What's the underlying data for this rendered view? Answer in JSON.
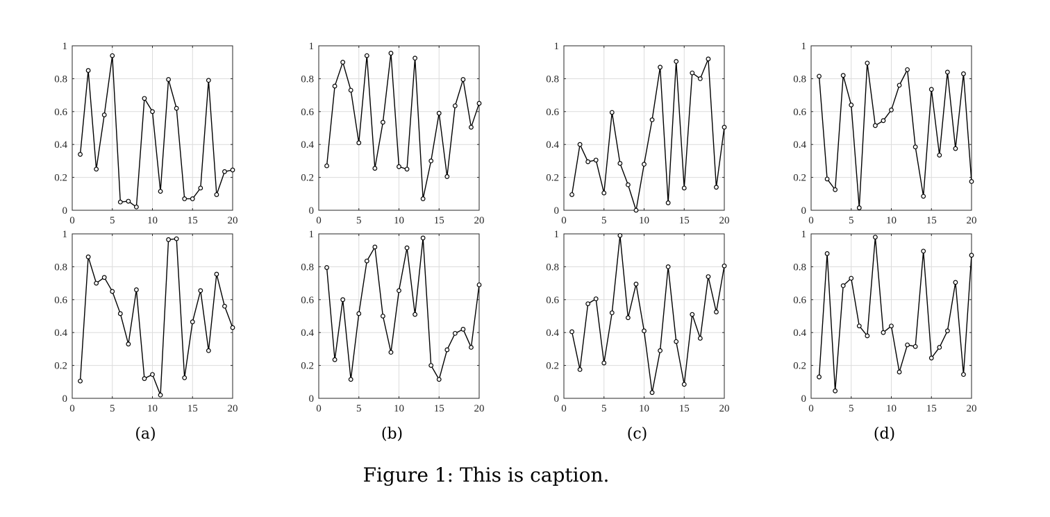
{
  "figure": {
    "caption": "Figure 1: This is caption.",
    "colors": {
      "line": "#000000",
      "grid": "#dcdcdc",
      "axes": "#262626"
    }
  },
  "chart_data": [
    {
      "type": "line",
      "label": "(a)",
      "row": 1,
      "xlim": [
        0,
        20
      ],
      "ylim": [
        0,
        1
      ],
      "xticks": [
        0,
        5,
        10,
        15,
        20
      ],
      "yticks": [
        0,
        0.2,
        0.4,
        0.6,
        0.8,
        1
      ],
      "grid": true,
      "marker": "circle",
      "x": [
        1,
        2,
        3,
        4,
        5,
        6,
        7,
        8,
        9,
        10,
        11,
        12,
        13,
        14,
        15,
        16,
        17,
        18,
        19,
        20
      ],
      "values": [
        0.34,
        0.85,
        0.25,
        0.58,
        0.94,
        0.05,
        0.055,
        0.02,
        0.68,
        0.6,
        0.115,
        0.795,
        0.62,
        0.07,
        0.07,
        0.135,
        0.79,
        0.095,
        0.235,
        0.245
      ]
    },
    {
      "type": "line",
      "label": "(b)",
      "row": 1,
      "xlim": [
        0,
        20
      ],
      "ylim": [
        0,
        1
      ],
      "xticks": [
        0,
        5,
        10,
        15,
        20
      ],
      "yticks": [
        0,
        0.2,
        0.4,
        0.6,
        0.8,
        1
      ],
      "grid": true,
      "marker": "circle",
      "x": [
        1,
        2,
        3,
        4,
        5,
        6,
        7,
        8,
        9,
        10,
        11,
        12,
        13,
        14,
        15,
        16,
        17,
        18,
        19,
        20
      ],
      "values": [
        0.27,
        0.755,
        0.9,
        0.73,
        0.41,
        0.94,
        0.255,
        0.535,
        0.955,
        0.265,
        0.25,
        0.925,
        0.07,
        0.3,
        0.59,
        0.205,
        0.635,
        0.795,
        0.505,
        0.65
      ]
    },
    {
      "type": "line",
      "label": "(c)",
      "row": 1,
      "xlim": [
        0,
        20
      ],
      "ylim": [
        0,
        1
      ],
      "xticks": [
        0,
        5,
        10,
        15,
        20
      ],
      "yticks": [
        0,
        0.2,
        0.4,
        0.6,
        0.8,
        1
      ],
      "grid": true,
      "marker": "circle",
      "x": [
        1,
        2,
        3,
        4,
        5,
        6,
        7,
        8,
        9,
        10,
        11,
        12,
        13,
        14,
        15,
        16,
        17,
        18,
        19,
        20
      ],
      "values": [
        0.095,
        0.4,
        0.295,
        0.305,
        0.105,
        0.595,
        0.285,
        0.155,
        0.0,
        0.28,
        0.55,
        0.87,
        0.045,
        0.905,
        0.135,
        0.835,
        0.8,
        0.92,
        0.14,
        0.505
      ]
    },
    {
      "type": "line",
      "label": "(d)",
      "row": 1,
      "xlim": [
        0,
        20
      ],
      "ylim": [
        0,
        1
      ],
      "xticks": [
        0,
        5,
        10,
        15,
        20
      ],
      "yticks": [
        0,
        0.2,
        0.4,
        0.6,
        0.8,
        1
      ],
      "grid": true,
      "marker": "circle",
      "x": [
        1,
        2,
        3,
        4,
        5,
        6,
        7,
        8,
        9,
        10,
        11,
        12,
        13,
        14,
        15,
        16,
        17,
        18,
        19,
        20
      ],
      "values": [
        0.815,
        0.19,
        0.125,
        0.82,
        0.64,
        0.015,
        0.895,
        0.515,
        0.545,
        0.61,
        0.76,
        0.855,
        0.385,
        0.085,
        0.735,
        0.335,
        0.84,
        0.375,
        0.83,
        0.175
      ]
    },
    {
      "type": "line",
      "label": "(a)",
      "row": 2,
      "xlim": [
        0,
        20
      ],
      "ylim": [
        0,
        1
      ],
      "xticks": [
        0,
        5,
        10,
        15,
        20
      ],
      "yticks": [
        0,
        0.2,
        0.4,
        0.6,
        0.8,
        1
      ],
      "grid": true,
      "marker": "circle",
      "x": [
        1,
        2,
        3,
        4,
        5,
        6,
        7,
        8,
        9,
        10,
        11,
        12,
        13,
        14,
        15,
        16,
        17,
        18,
        19,
        20
      ],
      "values": [
        0.105,
        0.86,
        0.7,
        0.735,
        0.65,
        0.515,
        0.33,
        0.66,
        0.12,
        0.145,
        0.02,
        0.965,
        0.97,
        0.125,
        0.465,
        0.655,
        0.29,
        0.755,
        0.56,
        0.43
      ]
    },
    {
      "type": "line",
      "label": "(b)",
      "row": 2,
      "xlim": [
        0,
        20
      ],
      "ylim": [
        0,
        1
      ],
      "xticks": [
        0,
        5,
        10,
        15,
        20
      ],
      "yticks": [
        0,
        0.2,
        0.4,
        0.6,
        0.8,
        1
      ],
      "grid": true,
      "marker": "circle",
      "x": [
        1,
        2,
        3,
        4,
        5,
        6,
        7,
        8,
        9,
        10,
        11,
        12,
        13,
        14,
        15,
        16,
        17,
        18,
        19,
        20
      ],
      "values": [
        0.795,
        0.235,
        0.6,
        0.115,
        0.515,
        0.835,
        0.92,
        0.5,
        0.28,
        0.655,
        0.915,
        0.51,
        0.975,
        0.2,
        0.115,
        0.295,
        0.395,
        0.42,
        0.31,
        0.69
      ]
    },
    {
      "type": "line",
      "label": "(c)",
      "row": 2,
      "xlim": [
        0,
        20
      ],
      "ylim": [
        0,
        1
      ],
      "xticks": [
        0,
        5,
        10,
        15,
        20
      ],
      "yticks": [
        0,
        0.2,
        0.4,
        0.6,
        0.8,
        1
      ],
      "grid": true,
      "marker": "circle",
      "x": [
        1,
        2,
        3,
        4,
        5,
        6,
        7,
        8,
        9,
        10,
        11,
        12,
        13,
        14,
        15,
        16,
        17,
        18,
        19,
        20
      ],
      "values": [
        0.405,
        0.175,
        0.575,
        0.605,
        0.215,
        0.52,
        0.99,
        0.49,
        0.695,
        0.41,
        0.035,
        0.29,
        0.8,
        0.345,
        0.085,
        0.51,
        0.365,
        0.74,
        0.525,
        0.805
      ]
    },
    {
      "type": "line",
      "label": "(d)",
      "row": 2,
      "xlim": [
        0,
        20
      ],
      "ylim": [
        0,
        1
      ],
      "xticks": [
        0,
        5,
        10,
        15,
        20
      ],
      "yticks": [
        0,
        0.2,
        0.4,
        0.6,
        0.8,
        1
      ],
      "grid": true,
      "marker": "circle",
      "x": [
        1,
        2,
        3,
        4,
        5,
        6,
        7,
        8,
        9,
        10,
        11,
        12,
        13,
        14,
        15,
        16,
        17,
        18,
        19,
        20
      ],
      "values": [
        0.13,
        0.88,
        0.045,
        0.685,
        0.73,
        0.44,
        0.38,
        0.98,
        0.4,
        0.44,
        0.16,
        0.325,
        0.315,
        0.895,
        0.245,
        0.31,
        0.41,
        0.705,
        0.145,
        0.87
      ]
    }
  ]
}
